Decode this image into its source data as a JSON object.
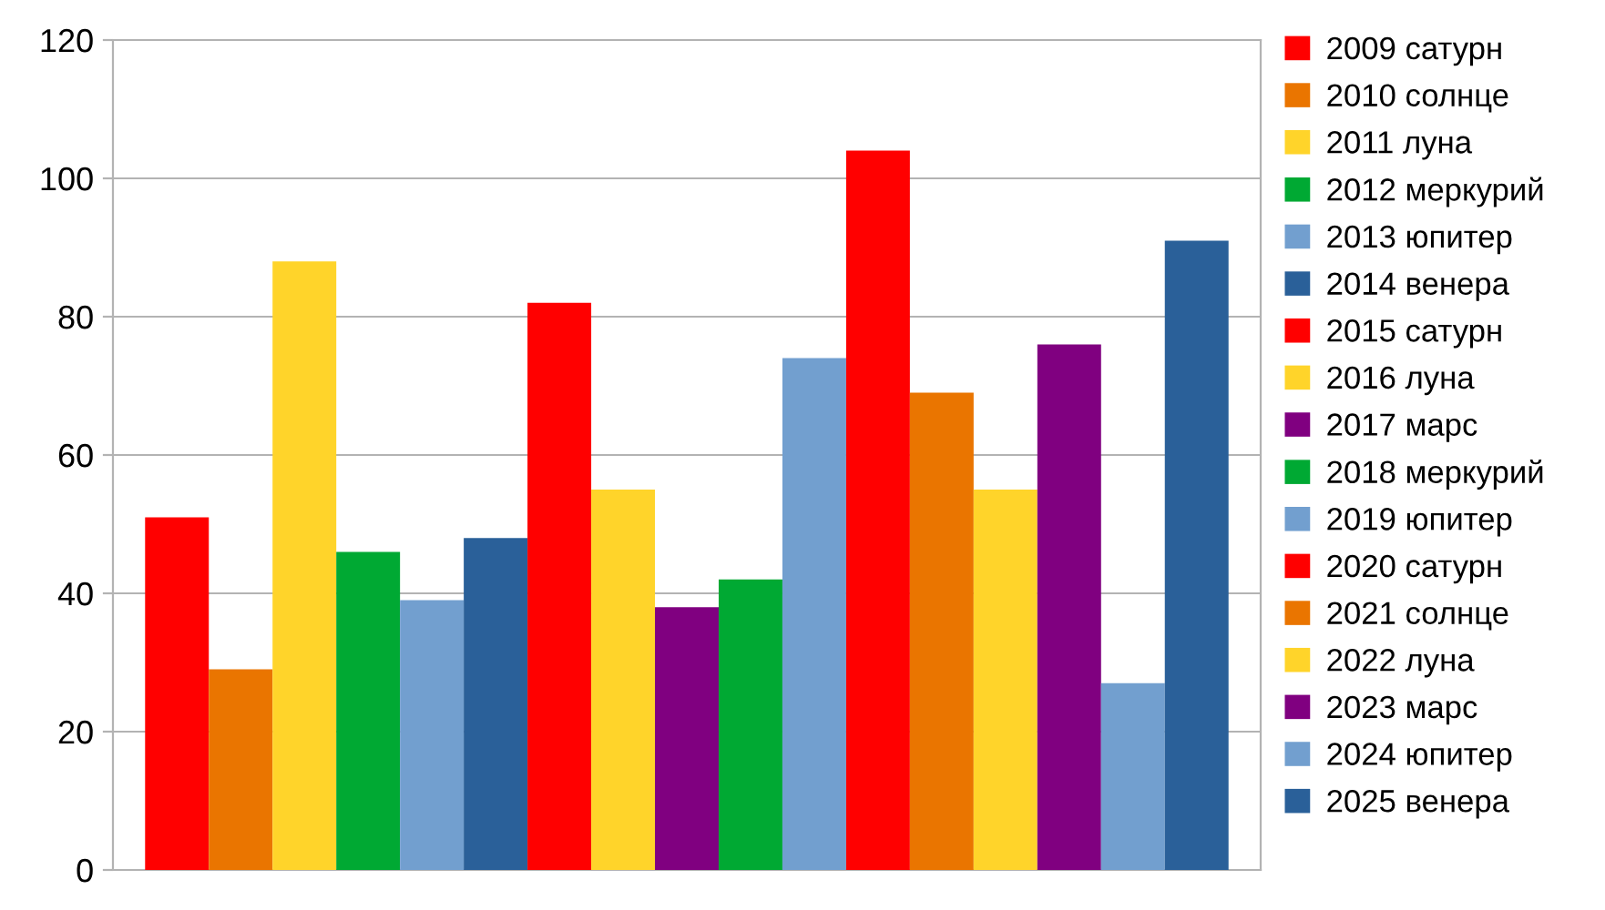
{
  "chart_data": {
    "type": "bar",
    "categories": [
      null
    ],
    "ylim": [
      0,
      120
    ],
    "yticks": [
      0,
      20,
      40,
      60,
      80,
      100,
      120
    ],
    "grid": "y",
    "legend": "right",
    "series": [
      {
        "name": "2009 сатурн",
        "color": "#ff0000",
        "values": [
          51
        ]
      },
      {
        "name": "2010 солнце",
        "color": "#ea7500",
        "values": [
          29
        ]
      },
      {
        "name": "2011 луна",
        "color": "#ffd42a",
        "values": [
          88
        ]
      },
      {
        "name": "2012 меркурий",
        "color": "#00a933",
        "values": [
          46
        ]
      },
      {
        "name": "2013 юпитер",
        "color": "#729fcf",
        "values": [
          39
        ]
      },
      {
        "name": "2014 венера",
        "color": "#2a6099",
        "values": [
          48
        ]
      },
      {
        "name": "2015 сатурн",
        "color": "#ff0000",
        "values": [
          82
        ]
      },
      {
        "name": "2016 луна",
        "color": "#ffd42a",
        "values": [
          55
        ]
      },
      {
        "name": "2017 марс",
        "color": "#800080",
        "values": [
          38
        ]
      },
      {
        "name": "2018 меркурий",
        "color": "#00a933",
        "values": [
          42
        ]
      },
      {
        "name": "2019 юпитер",
        "color": "#729fcf",
        "values": [
          74
        ]
      },
      {
        "name": "2020 сатурн",
        "color": "#ff0000",
        "values": [
          104
        ]
      },
      {
        "name": "2021 солнце",
        "color": "#ea7500",
        "values": [
          69
        ]
      },
      {
        "name": "2022 луна",
        "color": "#ffd42a",
        "values": [
          55
        ]
      },
      {
        "name": "2023 марс",
        "color": "#800080",
        "values": [
          76
        ]
      },
      {
        "name": "2024 юпитер",
        "color": "#729fcf",
        "values": [
          27
        ]
      },
      {
        "name": "2025 венера",
        "color": "#2a6099",
        "values": [
          91
        ]
      }
    ]
  }
}
